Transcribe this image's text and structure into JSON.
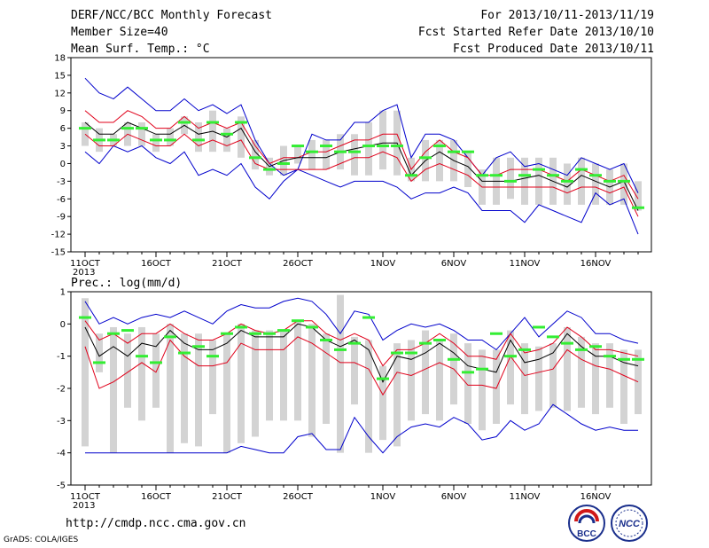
{
  "header": {
    "title": "DERF/NCC/BCC Monthly Forecast",
    "member_size": "Member Size=40",
    "variable": "Mean Surf. Temp.: °C",
    "period": "For 2013/10/11-2013/11/19",
    "fcst_start": "Fcst Started Refer Date 2013/10/10",
    "fcst_produced": "Fcst Produced Date 2013/10/11"
  },
  "footer": {
    "url": "http://cmdp.ncc.cma.gov.cn",
    "grads": "GrADS: COLA/IGES",
    "logo_bcc_text": "BCC",
    "logo_ncc_text": "NCC"
  },
  "colors": {
    "box": "#d3d3d3",
    "mean": "#000000",
    "sd": "#e0001a",
    "extreme": "#0000cc",
    "median": "#33ee33"
  },
  "chart_data": [
    {
      "type": "box",
      "title": "",
      "ylabel": "Mean Surf. Temp.: °C",
      "ylim": [
        -15,
        18
      ],
      "yticks": [
        -15,
        -12,
        -9,
        -6,
        -3,
        0,
        3,
        6,
        9,
        12,
        15,
        18
      ],
      "x_tick_labels": [
        "11OCT",
        "16OCT",
        "21OCT",
        "26OCT",
        "1NOV",
        "6NOV",
        "11NOV",
        "16NOV"
      ],
      "x_tick_days": [
        1,
        6,
        11,
        16,
        22,
        27,
        32,
        37
      ],
      "year_label": "2013",
      "days": [
        1,
        2,
        3,
        4,
        5,
        6,
        7,
        8,
        9,
        10,
        11,
        12,
        13,
        14,
        15,
        16,
        17,
        18,
        19,
        20,
        21,
        22,
        23,
        24,
        25,
        26,
        27,
        28,
        29,
        30,
        31,
        32,
        33,
        34,
        35,
        36,
        37,
        38,
        39,
        40
      ],
      "max": [
        14.5,
        12,
        11,
        13,
        11,
        9,
        9,
        11,
        9,
        10,
        8.5,
        10,
        4,
        0,
        -2,
        -1,
        5,
        4,
        4,
        7,
        7,
        9,
        10,
        1,
        5,
        5,
        4,
        1,
        -2,
        1,
        2,
        -0.5,
        0,
        -1,
        -2,
        1,
        0,
        -1,
        0,
        -5
      ],
      "plus_sd": [
        9,
        7,
        7,
        9,
        8,
        6,
        6,
        8,
        6,
        7,
        6,
        7,
        3,
        0,
        1,
        1,
        2,
        2,
        3,
        4,
        4,
        5,
        5,
        -1,
        2,
        4,
        2,
        1,
        -2,
        -2,
        -1,
        -1,
        -1,
        -2,
        -3,
        -1,
        -2,
        -3,
        -2,
        -6
      ],
      "mean": [
        7,
        5,
        5,
        7,
        6,
        5,
        5,
        6.5,
        5,
        5.5,
        4.5,
        6,
        2,
        -0.5,
        0.5,
        1,
        1,
        1,
        2,
        2.5,
        3,
        3.5,
        3.5,
        -2,
        0.5,
        2,
        0.5,
        -0.5,
        -3,
        -3,
        -3,
        -2.5,
        -2,
        -3,
        -4,
        -2,
        -3,
        -4,
        -3,
        -8
      ],
      "minus_sd": [
        5,
        3,
        3,
        5,
        4,
        3,
        3,
        5,
        3,
        4,
        3,
        4,
        0,
        -1,
        -1,
        -1,
        -1,
        -1,
        0,
        1,
        1,
        2,
        1,
        -3,
        -1,
        0,
        -1,
        -2,
        -4,
        -4,
        -4,
        -4,
        -4,
        -4,
        -5,
        -4,
        -4,
        -5,
        -4,
        -9
      ],
      "min": [
        2,
        0,
        3,
        2,
        3,
        1,
        0,
        2,
        -2,
        -1,
        -2,
        0,
        -4,
        -6,
        -3,
        -1,
        -2,
        -3,
        -4,
        -3,
        -3,
        -3,
        -4,
        -6,
        -5,
        -5,
        -4,
        -5,
        -8,
        -8,
        -8,
        -10,
        -7,
        -8,
        -9,
        -10,
        -5,
        -7,
        -6,
        -12
      ],
      "box_high": [
        7,
        6,
        5,
        7,
        7,
        5,
        6,
        8,
        7,
        9,
        6,
        8,
        4,
        1,
        3,
        3,
        4,
        4,
        5,
        5,
        7,
        9,
        9,
        1,
        4,
        4,
        4,
        2,
        -1,
        1,
        1,
        1,
        1,
        1,
        0,
        1,
        0,
        -1,
        0,
        -3
      ],
      "box_low": [
        3,
        2,
        3,
        3,
        3,
        2,
        3,
        5,
        2,
        2,
        2,
        1,
        -1,
        -2,
        -2,
        0,
        -1,
        -1,
        -1,
        -2,
        -2,
        -1,
        -2,
        -3,
        -3,
        -3,
        -3,
        -4,
        -7,
        -7,
        -6,
        -7,
        -7,
        -7,
        -7,
        -7,
        -7,
        -7,
        -7,
        -8
      ],
      "median": [
        6,
        4,
        4,
        6,
        6,
        4,
        4,
        7,
        4,
        7,
        5,
        7,
        1,
        -1,
        0,
        3,
        2,
        3,
        2,
        2,
        3,
        3,
        3,
        -2,
        1,
        3,
        2,
        2,
        -2,
        -2,
        -3,
        -2,
        -1,
        -2,
        -3,
        -1,
        -2,
        -3,
        -3,
        -7.5
      ]
    },
    {
      "type": "box",
      "title": "Prec.: log(mm/d)",
      "ylabel": "Prec.: log(mm/d)",
      "ylim": [
        -5,
        1
      ],
      "yticks": [
        -5,
        -4,
        -3,
        -2,
        -1,
        0,
        1
      ],
      "x_tick_labels": [
        "11OCT",
        "16OCT",
        "21OCT",
        "26OCT",
        "1NOV",
        "6NOV",
        "11NOV",
        "16NOV"
      ],
      "x_tick_days": [
        1,
        6,
        11,
        16,
        22,
        27,
        32,
        37
      ],
      "year_label": "2013",
      "days": [
        1,
        2,
        3,
        4,
        5,
        6,
        7,
        8,
        9,
        10,
        11,
        12,
        13,
        14,
        15,
        16,
        17,
        18,
        19,
        20,
        21,
        22,
        23,
        24,
        25,
        26,
        27,
        28,
        29,
        30,
        31,
        32,
        33,
        34,
        35,
        36,
        37,
        38,
        39,
        40
      ],
      "max": [
        0.7,
        0,
        0.2,
        0,
        0.2,
        0.3,
        0.2,
        0.4,
        0.2,
        0,
        0.4,
        0.6,
        0.5,
        0.5,
        0.7,
        0.8,
        0.7,
        0.3,
        -0.3,
        0.4,
        0.3,
        -0.5,
        -0.2,
        0,
        -0.1,
        0,
        -0.2,
        -0.5,
        -0.5,
        -0.8,
        -0.3,
        0.2,
        -0.4,
        0,
        0.4,
        0.2,
        -0.3,
        -0.3,
        -0.5,
        -0.6
      ],
      "plus_sd": [
        0.1,
        -0.5,
        -0.3,
        -0.6,
        -0.3,
        -0.3,
        0,
        -0.3,
        -0.5,
        -0.5,
        -0.3,
        0,
        -0.2,
        -0.3,
        -0.2,
        0.1,
        0.1,
        -0.3,
        -0.5,
        -0.3,
        -0.5,
        -1.3,
        -0.8,
        -0.8,
        -0.6,
        -0.3,
        -0.6,
        -1,
        -1,
        -1.1,
        -0.3,
        -0.9,
        -0.8,
        -0.6,
        -0.1,
        -0.4,
        -0.8,
        -0.8,
        -0.9,
        -1
      ],
      "mean": [
        -0.1,
        -1,
        -0.7,
        -1,
        -0.6,
        -0.7,
        -0.2,
        -0.6,
        -0.8,
        -0.8,
        -0.6,
        -0.2,
        -0.4,
        -0.4,
        -0.4,
        0,
        -0.1,
        -0.5,
        -0.7,
        -0.5,
        -0.8,
        -1.8,
        -1,
        -1.1,
        -0.9,
        -0.6,
        -0.9,
        -1.3,
        -1.4,
        -1.5,
        -0.5,
        -1.2,
        -1.1,
        -0.9,
        -0.3,
        -0.7,
        -1,
        -1,
        -1.2,
        -1.3
      ],
      "minus_sd": [
        -0.7,
        -2,
        -1.8,
        -1.5,
        -1.2,
        -1.5,
        -0.5,
        -1,
        -1.3,
        -1.3,
        -1.2,
        -0.6,
        -0.8,
        -0.8,
        -0.8,
        -0.4,
        -0.6,
        -0.9,
        -1.2,
        -1.2,
        -1.4,
        -2.2,
        -1.5,
        -1.6,
        -1.4,
        -1.2,
        -1.4,
        -1.9,
        -1.9,
        -2,
        -1,
        -1.6,
        -1.5,
        -1.4,
        -0.8,
        -1.1,
        -1.3,
        -1.4,
        -1.6,
        -1.8
      ],
      "min": [
        -4,
        -4,
        -4,
        -4,
        -4,
        -4,
        -4,
        -4,
        -4,
        -4,
        -4,
        -3.8,
        -3.9,
        -4,
        -4,
        -3.5,
        -3.4,
        -3.9,
        -3.9,
        -2.9,
        -3.5,
        -4,
        -3.5,
        -3.2,
        -3.1,
        -3.2,
        -2.9,
        -3.1,
        -3.6,
        -3.5,
        -3,
        -3.3,
        -3.1,
        -2.5,
        -2.8,
        -3.1,
        -3.3,
        -3.2,
        -3.3,
        -3.3
      ],
      "box_high": [
        0.8,
        -0.3,
        -0.1,
        -0.3,
        -0.1,
        -0.3,
        0,
        -0.3,
        -0.3,
        -0.5,
        -0.3,
        0,
        -0.2,
        -0.2,
        -0.2,
        0.1,
        0,
        -0.3,
        0.9,
        -0.4,
        -0.5,
        -1.3,
        -0.6,
        -0.5,
        -0.2,
        -0.5,
        -0.3,
        -0.6,
        -0.8,
        -0.8,
        -0.2,
        -0.6,
        -0.7,
        -0.6,
        -0.1,
        -0.4,
        -0.6,
        -0.6,
        -0.8,
        -0.8
      ],
      "box_low": [
        -3.8,
        -1.5,
        -4,
        -2.6,
        -3,
        -2.6,
        -4,
        -3.7,
        -3.8,
        -2.8,
        -4,
        -3.7,
        -3.5,
        -3,
        -3,
        -3,
        -3.5,
        -3.1,
        -4,
        -2.5,
        -4,
        -3.6,
        -3.8,
        -3,
        -2.8,
        -3,
        -2.5,
        -3.1,
        -3.3,
        -3.1,
        -2.5,
        -2.8,
        -2.7,
        -2.6,
        -2.7,
        -2.6,
        -2.8,
        -2.6,
        -3.1,
        -2.8
      ],
      "median": [
        0.2,
        -1.2,
        -0.3,
        -0.2,
        -1,
        -1.2,
        -0.4,
        -0.9,
        -0.7,
        -1,
        -0.3,
        -0.1,
        -0.3,
        -0.3,
        -0.2,
        0.1,
        -0.1,
        -0.5,
        -0.8,
        -0.6,
        0.2,
        -1.7,
        -0.9,
        -0.9,
        -0.6,
        -0.5,
        -1.1,
        -1.5,
        -1.4,
        -0.3,
        -1,
        -0.8,
        -0.1,
        -0.4,
        -0.6,
        -0.8,
        -0.7,
        -1,
        -1.1,
        -1.1
      ]
    }
  ]
}
